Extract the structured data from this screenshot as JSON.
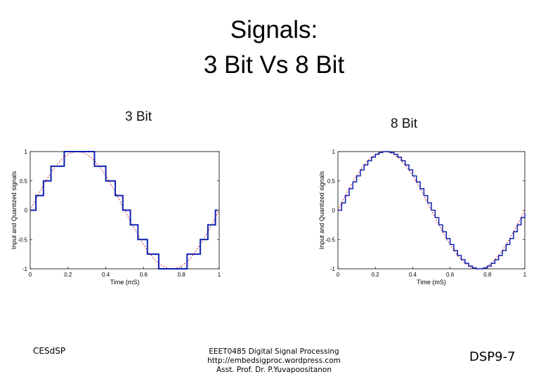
{
  "title_line1": "Signals:",
  "title_line2": "3 Bit Vs 8 Bit",
  "footer": {
    "left": "CESdSP",
    "center_line1": "EEET0485 Digital Signal Processing",
    "center_line2": "http://embedsigproc.wordpress.com",
    "center_line3": "Asst. Prof. Dr. P.Yuvapoositanon",
    "right": "DSP9-7"
  },
  "colors": {
    "input": "#d03030",
    "quantized": "#1020b0"
  },
  "chart_data": [
    {
      "type": "line",
      "title": "3 Bit",
      "xlabel": "Time (mS)",
      "ylabel": "Input and Quantized signals",
      "xlim": [
        0,
        1
      ],
      "ylim": [
        -1,
        1
      ],
      "xticks": [
        "0",
        "0.2",
        "0.4",
        "0.6",
        "0.8",
        "1"
      ],
      "yticks": [
        "1",
        "0.5",
        "0",
        "-0.5",
        "-1"
      ],
      "series": [
        {
          "name": "input",
          "style": "dashed",
          "x_step": 0.02,
          "values": [
            0,
            0.125,
            0.249,
            0.368,
            0.482,
            0.588,
            0.685,
            0.771,
            0.844,
            0.905,
            0.951,
            0.982,
            0.998,
            0.998,
            0.982,
            0.951,
            0.905,
            0.844,
            0.771,
            0.685,
            0.588,
            0.482,
            0.368,
            0.249,
            0.125,
            0,
            -0.125,
            -0.249,
            -0.368,
            -0.482,
            -0.588,
            -0.685,
            -0.771,
            -0.844,
            -0.905,
            -0.951,
            -0.982,
            -0.998,
            -0.998,
            -0.982,
            -0.951,
            -0.905,
            -0.844,
            -0.771,
            -0.685,
            -0.588,
            -0.482,
            -0.368,
            -0.249,
            -0.125,
            0
          ]
        },
        {
          "name": "quantized",
          "style": "step",
          "transitions": [
            0,
            0.03,
            0.07,
            0.11,
            0.18,
            0.34,
            0.4,
            0.45,
            0.49,
            0.53,
            0.57,
            0.62,
            0.68,
            0.83,
            0.9,
            0.94,
            0.98,
            0.99
          ],
          "levels": [
            0,
            0.25,
            0.5,
            0.75,
            1,
            0.75,
            0.5,
            0.25,
            0,
            -0.25,
            -0.5,
            -0.75,
            -1,
            -0.75,
            -0.5,
            -0.25,
            0,
            0
          ]
        }
      ]
    },
    {
      "type": "line",
      "title": "8 Bit",
      "xlabel": "Time (mS)",
      "ylabel": "Input and Quantized signals",
      "xlim": [
        0,
        1
      ],
      "ylim": [
        -1,
        1
      ],
      "xticks": [
        "0",
        "0.2",
        "0.4",
        "0.6",
        "0.8",
        "1"
      ],
      "yticks": [
        "1",
        "0.5",
        "0",
        "-0.5",
        "-1"
      ],
      "series": [
        {
          "name": "input",
          "style": "dashed",
          "x_step": 0.02,
          "values": [
            0,
            0.125,
            0.249,
            0.368,
            0.482,
            0.588,
            0.685,
            0.771,
            0.844,
            0.905,
            0.951,
            0.982,
            0.998,
            0.998,
            0.982,
            0.951,
            0.905,
            0.844,
            0.771,
            0.685,
            0.588,
            0.482,
            0.368,
            0.249,
            0.125,
            0,
            -0.125,
            -0.249,
            -0.368,
            -0.482,
            -0.588,
            -0.685,
            -0.771,
            -0.844,
            -0.905,
            -0.951,
            -0.982,
            -0.998,
            -0.998,
            -0.982,
            -0.951,
            -0.905,
            -0.844,
            -0.771,
            -0.685,
            -0.588,
            -0.482,
            -0.368,
            -0.249,
            -0.125,
            0
          ]
        },
        {
          "name": "quantized",
          "style": "step",
          "x_step": 0.02,
          "values": [
            0,
            0.125,
            0.25,
            0.367,
            0.484,
            0.586,
            0.688,
            0.773,
            0.844,
            0.906,
            0.953,
            0.984,
            1,
            1,
            0.984,
            0.953,
            0.906,
            0.844,
            0.773,
            0.688,
            0.586,
            0.484,
            0.367,
            0.25,
            0.125,
            0,
            -0.125,
            -0.25,
            -0.367,
            -0.484,
            -0.586,
            -0.688,
            -0.773,
            -0.844,
            -0.906,
            -0.953,
            -0.984,
            -1,
            -1,
            -0.984,
            -0.953,
            -0.906,
            -0.844,
            -0.773,
            -0.688,
            -0.586,
            -0.484,
            -0.367,
            -0.25,
            -0.125,
            -0.055
          ]
        }
      ]
    }
  ]
}
